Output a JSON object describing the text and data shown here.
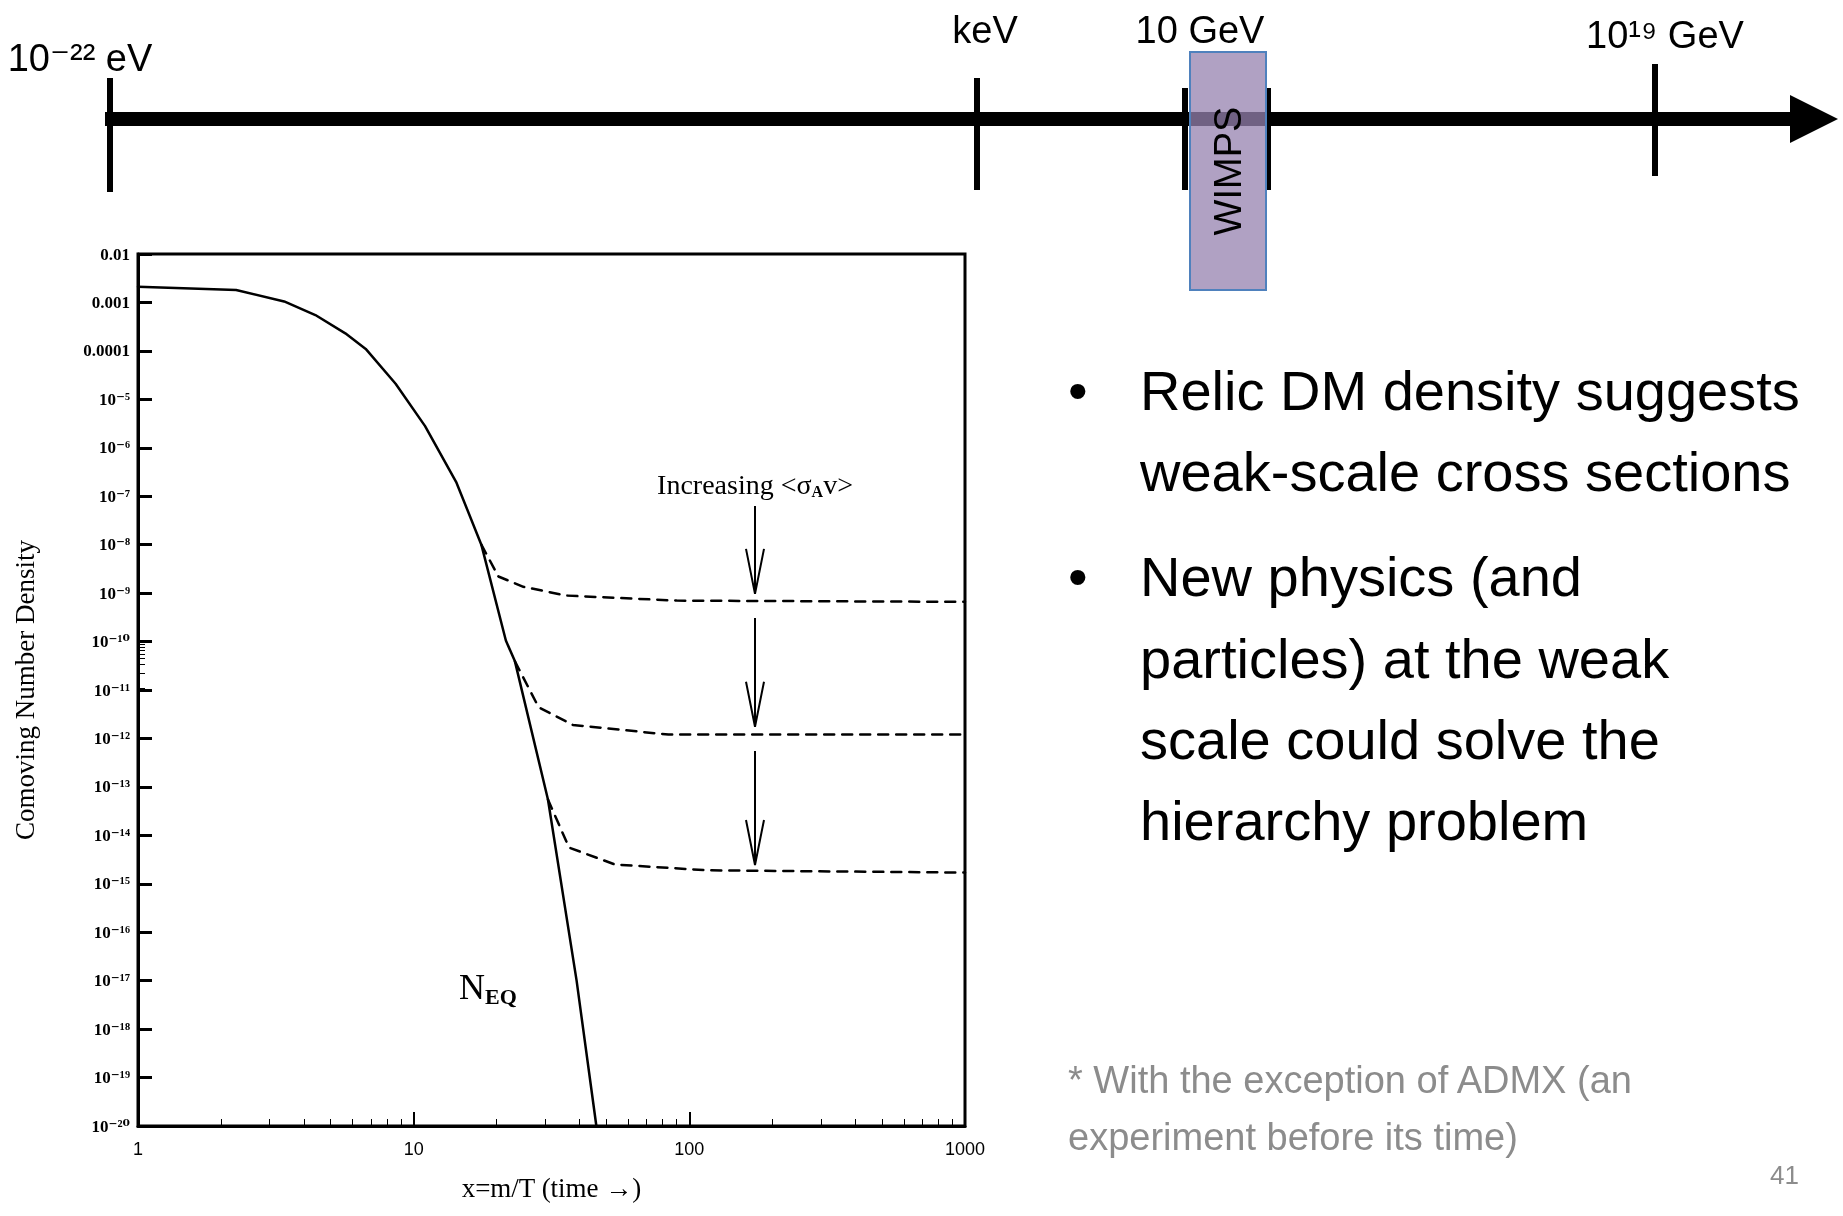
{
  "chart_data": [
    {
      "type": "other",
      "annotations": [
        "10⁻²² eV",
        "keV",
        "10 GeV",
        "10¹⁹ GeV",
        "WIMPS"
      ]
    },
    {
      "type": "line",
      "log": "xy",
      "marker": "none",
      "xlabel": "x=m/T (time →)",
      "ylabel": "Comoving Number Density",
      "xlim": [
        1,
        1000
      ],
      "xticks": [
        1,
        10,
        100,
        1000
      ],
      "ylim": [
        1e-20,
        0.01
      ],
      "yticks": [
        0.01,
        0.001,
        0.0001,
        {
          "value": 1e-05,
          "label": "10⁻⁵"
        },
        {
          "value": 1e-06,
          "label": "10⁻⁶"
        },
        {
          "value": 1e-07,
          "label": "10⁻⁷"
        },
        {
          "value": 1e-08,
          "label": "10⁻⁸"
        },
        {
          "value": 1e-09,
          "label": "10⁻⁹"
        },
        {
          "value": 1e-10,
          "label": "10⁻¹⁰"
        },
        {
          "value": 1e-11,
          "label": "10⁻¹¹"
        },
        {
          "value": 1e-12,
          "label": "10⁻¹²"
        },
        {
          "value": 1e-13,
          "label": "10⁻¹³"
        },
        {
          "value": 1e-14,
          "label": "10⁻¹⁴"
        },
        {
          "value": 1e-15,
          "label": "10⁻¹⁵"
        },
        {
          "value": 1e-16,
          "label": "10⁻¹⁶"
        },
        {
          "value": 1e-17,
          "label": "10⁻¹⁷"
        },
        {
          "value": 1e-18,
          "label": "10⁻¹⁸"
        },
        {
          "value": 1e-19,
          "label": "10⁻¹⁹"
        },
        {
          "value": 1e-20,
          "label": "10⁻²⁰"
        }
      ],
      "series": [
        {
          "color": "#000000",
          "line_style": "solid",
          "x": [
            1,
            2.27,
            3.39,
            4.4,
            5.65,
            6.7,
            8.6,
            11,
            14.3,
            17.6,
            21.6,
            23.3,
            30.7,
            39,
            46
          ],
          "values": [
            0.0021,
            0.0018,
            0.00105,
            0.00055,
            0.00023,
            0.00011,
            2.1e-05,
            2.8e-06,
            1.9e-07,
            1e-08,
            1.05e-10,
            3.9e-11,
            5.5e-14,
            1e-17,
            1e-20
          ]
        },
        {
          "color": "#000000",
          "line_style": "dashed",
          "x": [
            17.6,
            20.3,
            25,
            35.7,
            90,
            1000
          ],
          "values": [
            1e-08,
            2.2e-09,
            1.35e-09,
            8.9e-10,
            7e-10,
            6.6e-10
          ]
        },
        {
          "color": "#000000",
          "line_style": "dashed",
          "x": [
            23.3,
            28.4,
            37.8,
            84,
            1000
          ],
          "values": [
            3.9e-11,
            4.4e-12,
            1.9e-12,
            1.2e-12,
            1.2e-12
          ]
        },
        {
          "color": "#000000",
          "line_style": "dashed",
          "x": [
            30.7,
            36.6,
            53.7,
            116,
            1000
          ],
          "values": [
            5.5e-14,
            5.6e-15,
            2.5e-15,
            1.9e-15,
            1.7e-15
          ]
        }
      ],
      "annotations": [
        "Increasing <σ$_{A}$v>",
        "N$_{EQ}$",
        "• Relic DM density suggests weak-scale cross sections",
        "• New physics (and particles) at the weak scale could solve the hierarchy problem",
        "* With the exception of ADMX (an experiment before its time)",
        "41"
      ]
    }
  ]
}
